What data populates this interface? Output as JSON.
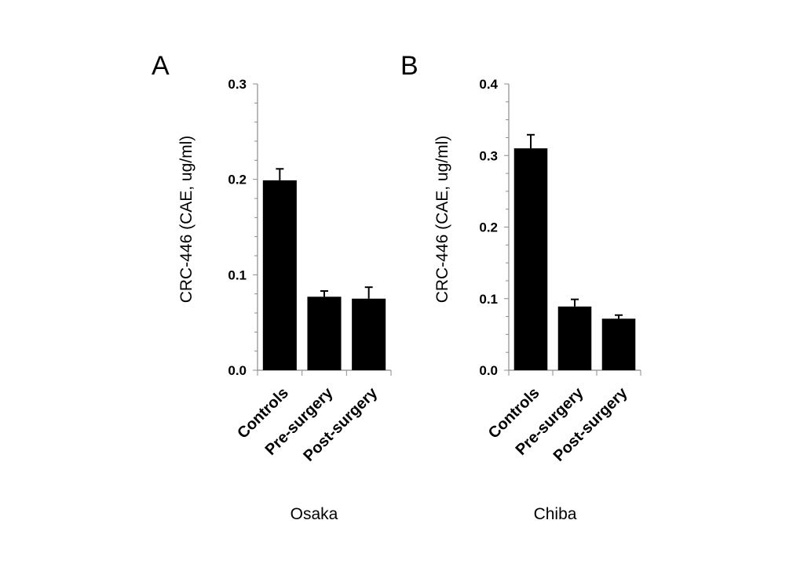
{
  "chart_data": [
    {
      "type": "bar",
      "panel": "A",
      "categories": [
        "Controls",
        "Pre-surgery",
        "Post-surgery"
      ],
      "values": [
        0.199,
        0.077,
        0.075
      ],
      "errors": [
        0.012,
        0.006,
        0.012
      ],
      "xlabel": "Osaka",
      "ylabel": "CRC-446 (CAE, ug/ml)",
      "ylim": [
        0,
        0.3
      ],
      "yticks": [
        "0.0",
        "0.1",
        "0.2",
        "0.3"
      ],
      "bar_color": "#000000",
      "grid": false
    },
    {
      "type": "bar",
      "panel": "B",
      "categories": [
        "Controls",
        "Pre-surgery",
        "Post-surgery"
      ],
      "values": [
        0.31,
        0.089,
        0.072
      ],
      "errors": [
        0.019,
        0.01,
        0.005
      ],
      "xlabel": "Chiba",
      "ylabel": "CRC-446 (CAE, ug/ml)",
      "ylim": [
        0,
        0.4
      ],
      "yticks": [
        "0.0",
        "0.1",
        "0.2",
        "0.3",
        "0.4"
      ],
      "bar_color": "#000000",
      "grid": false
    }
  ]
}
